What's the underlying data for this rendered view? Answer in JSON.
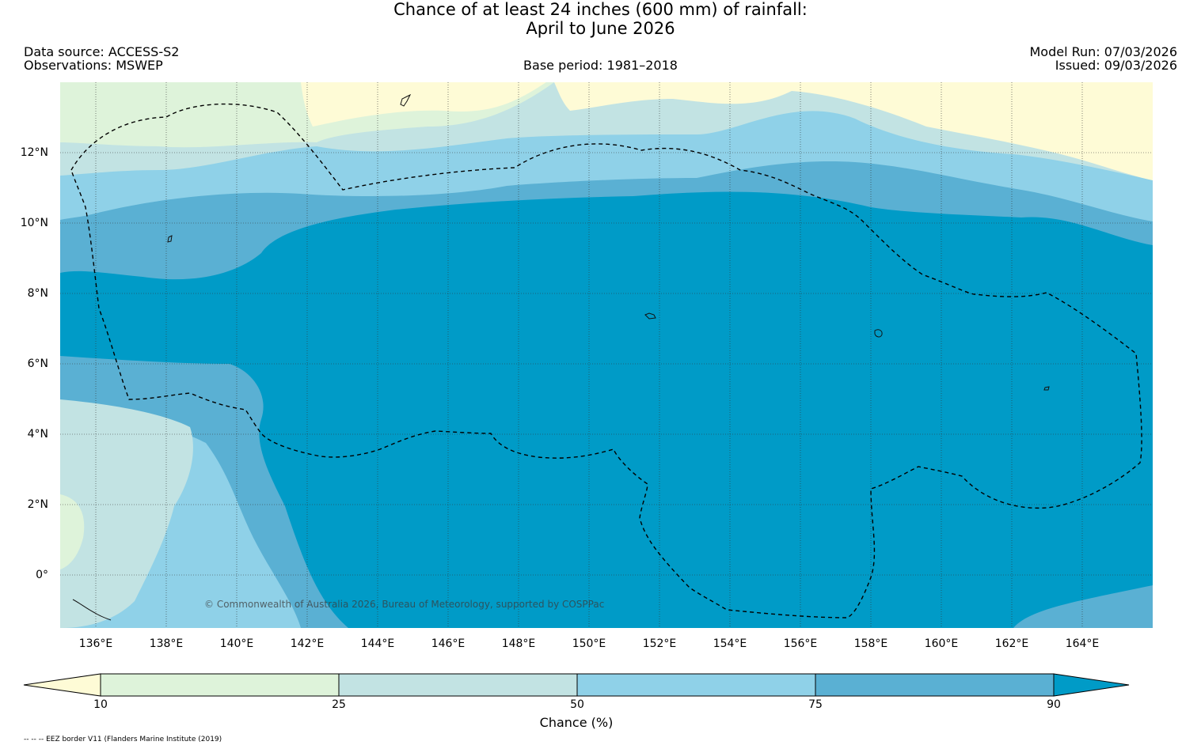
{
  "title": {
    "line1": "Chance of at least 24 inches (600  mm) of rainfall:",
    "line2": "April to June 2026"
  },
  "header": {
    "data_source": "Data source: ACCESS-S2",
    "observations": "Observations: MSWEP",
    "base_period": "Base period: 1981–2018",
    "model_run": "Model Run: 07/03/2026",
    "issued": "Issued: 09/03/2026"
  },
  "copyright": "© Commonwealth of Australia 2026, Bureau of Meteorology, supported by COSPPac",
  "axes": {
    "lon_labels": [
      "136°E",
      "138°E",
      "140°E",
      "142°E",
      "144°E",
      "146°E",
      "148°E",
      "150°E",
      "152°E",
      "154°E",
      "156°E",
      "158°E",
      "160°E",
      "162°E",
      "164°E"
    ],
    "lat_labels": [
      "12°N",
      "10°N",
      "8°N",
      "6°N",
      "4°N",
      "2°N",
      "0°"
    ]
  },
  "colorbar": {
    "title": "Chance (%)",
    "ticks": [
      "10",
      "25",
      "50",
      "75",
      "90"
    ],
    "colors": {
      "below_10": "#fefbd6",
      "10_25": "#def3da",
      "25_50": "#c2e3e3",
      "50_75": "#8fd1e8",
      "75_90": "#5ab0d3",
      "above_90": "#009bc7"
    }
  },
  "footnote": "-- -- -- EEZ border V11 (Flanders Marine Institute (2019)"
}
